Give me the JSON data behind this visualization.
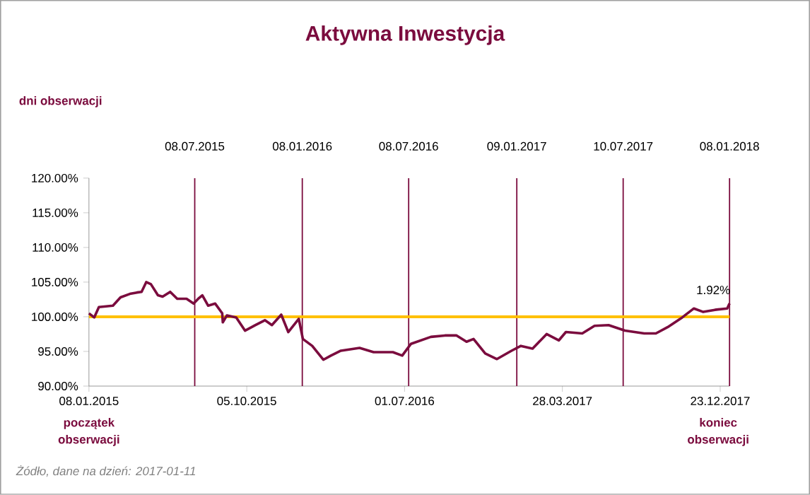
{
  "chart_data": {
    "type": "line",
    "title": "Aktywna Inwestycja",
    "x": [
      "2015-01-08",
      "2015-01-17",
      "2015-01-25",
      "2015-02-18",
      "2015-03-03",
      "2015-03-19",
      "2015-03-31",
      "2015-04-08",
      "2015-04-16",
      "2015-04-24",
      "2015-05-06",
      "2015-05-14",
      "2015-05-27",
      "2015-06-08",
      "2015-06-24",
      "2015-07-06",
      "2015-07-14",
      "2015-07-21",
      "2015-07-31",
      "2015-08-12",
      "2015-08-24",
      "2015-08-25",
      "2015-09-01",
      "2015-09-17",
      "2015-10-02",
      "2015-10-20",
      "2015-11-05",
      "2015-11-17",
      "2015-12-03",
      "2015-12-15",
      "2016-01-02",
      "2016-01-09",
      "2016-01-25",
      "2016-02-13",
      "2016-02-26",
      "2016-03-14",
      "2016-04-15",
      "2016-05-09",
      "2016-06-11",
      "2016-06-27",
      "2016-07-12",
      "2016-08-15",
      "2016-09-08",
      "2016-09-28",
      "2016-10-15",
      "2016-10-27",
      "2016-11-16",
      "2016-12-06",
      "2016-12-31",
      "2017-01-16",
      "2017-02-05",
      "2017-03-01",
      "2017-03-22",
      "2017-04-03",
      "2017-05-01",
      "2017-05-22",
      "2017-06-15",
      "2017-07-13",
      "2017-08-15",
      "2017-09-04",
      "2017-09-24",
      "2017-10-19",
      "2017-11-08",
      "2017-11-24",
      "2017-12-14",
      "2018-01-04",
      "2018-01-08"
    ],
    "series": [
      {
        "color": "#7b0c3e",
        "values": [
          100.5,
          99.9,
          101.4,
          101.6,
          102.8,
          103.3,
          103.5,
          103.6,
          105.0,
          104.7,
          103.1,
          102.9,
          103.6,
          102.6,
          102.6,
          101.9,
          102.6,
          103.1,
          101.6,
          101.9,
          100.5,
          99.2,
          100.2,
          99.9,
          98.0,
          98.8,
          99.5,
          98.8,
          100.3,
          97.8,
          99.7,
          96.8,
          95.8,
          93.8,
          94.4,
          95.1,
          95.5,
          94.9,
          94.9,
          94.4,
          96.1,
          97.1,
          97.3,
          97.3,
          96.4,
          96.8,
          94.7,
          93.9,
          95.1,
          95.8,
          95.4,
          97.5,
          96.6,
          97.8,
          97.6,
          98.7,
          98.8,
          98.0,
          97.6,
          97.6,
          98.5,
          99.9,
          101.2,
          100.7,
          101.0,
          101.2,
          101.92
        ]
      }
    ],
    "xlim": [
      "2015-01-08",
      "2018-01-08"
    ],
    "xticks": [
      {
        "value": "2015-01-08",
        "label": "08.01.2015"
      },
      {
        "value": "2015-10-05",
        "label": "05.10.2015"
      },
      {
        "value": "2016-07-01",
        "label": "01.07.2016"
      },
      {
        "value": "2017-03-28",
        "label": "28.03.2017"
      },
      {
        "value": "2017-12-23",
        "label": "23.12.2017"
      }
    ],
    "ylim": [
      90,
      120
    ],
    "yticks": [
      {
        "value": 90,
        "label": "90.00%"
      },
      {
        "value": 95,
        "label": "95.00%"
      },
      {
        "value": 100,
        "label": "100.00%"
      },
      {
        "value": 105,
        "label": "105.00%"
      },
      {
        "value": 110,
        "label": "110.00%"
      },
      {
        "value": 115,
        "label": "115.00%"
      },
      {
        "value": 120,
        "label": "120.00%"
      }
    ],
    "ref_lines": [
      {
        "axis": "x",
        "value": "2015-07-08",
        "label": "08.07.2015",
        "color": "#7b0c3e"
      },
      {
        "axis": "x",
        "value": "2016-01-08",
        "label": "08.01.2016",
        "color": "#7b0c3e"
      },
      {
        "axis": "x",
        "value": "2016-07-08",
        "label": "08.07.2016",
        "color": "#7b0c3e"
      },
      {
        "axis": "x",
        "value": "2017-01-09",
        "label": "09.01.2017",
        "color": "#7b0c3e"
      },
      {
        "axis": "x",
        "value": "2017-07-10",
        "label": "10.07.2017",
        "color": "#7b0c3e"
      },
      {
        "axis": "x",
        "value": "2018-01-08",
        "label": "08.01.2018",
        "color": "#7b0c3e"
      },
      {
        "axis": "y",
        "value": 100,
        "color": "#ffc000"
      }
    ],
    "annotations": [
      "dni obserwacji",
      "początek obserwacji",
      "koniec obserwacji",
      "Żódło, dane na dzień: 2017-01-11",
      {
        "text": "1.92%",
        "x": "2018-01-08",
        "y": 101.92
      }
    ]
  }
}
